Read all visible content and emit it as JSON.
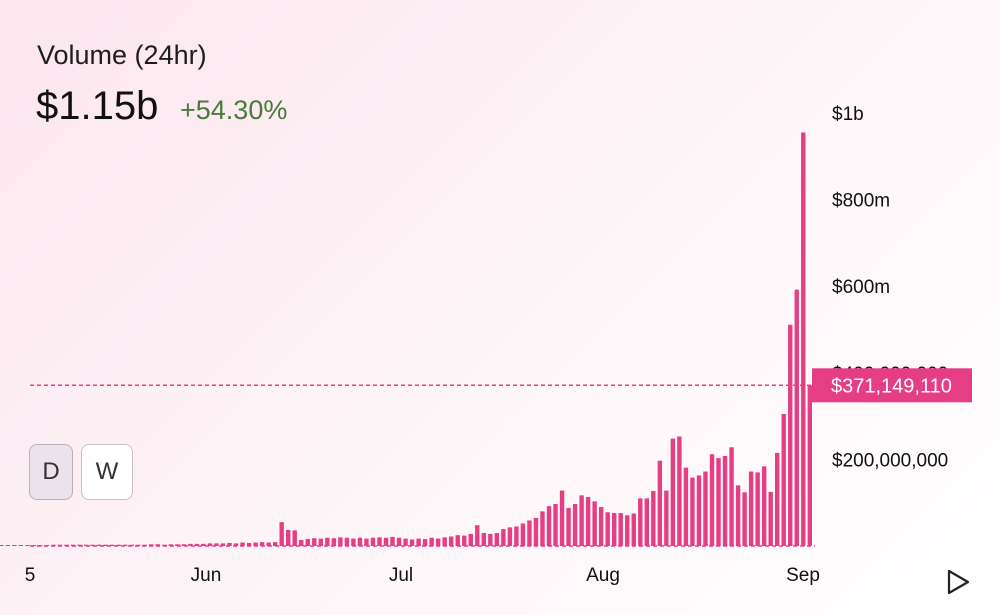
{
  "header": {
    "title": "Volume (24hr)",
    "value": "$1.15b",
    "change": "+54.30%"
  },
  "controls": {
    "daily_label": "D",
    "weekly_label": "W",
    "active": "D"
  },
  "crosshair": {
    "value": 371149110,
    "label": "$371,149,110"
  },
  "colors": {
    "bar": "#e63e84",
    "crosshair": "#e63e84",
    "change_positive": "#4b7a3b"
  },
  "chart_data": {
    "type": "bar",
    "y_tick_labels": [
      "$200,000,000",
      "$400,000,000",
      "$600m",
      "$800m",
      "$1b"
    ],
    "y_ticks": [
      200000000,
      400000000,
      600000000,
      800000000,
      1000000000
    ],
    "ylim": [
      0,
      1000000000
    ],
    "x_tick_labels": [
      "5",
      "Jun",
      "Jul",
      "Aug",
      "Sep"
    ],
    "bar_width_note": "daily bars",
    "values": [
      2000000,
      2000000,
      2000000,
      2000000,
      2000000,
      2000000,
      2000000,
      2000000,
      2000000,
      2000000,
      3000000,
      3000000,
      3000000,
      3000000,
      3000000,
      3000000,
      3000000,
      3000000,
      3000000,
      3000000,
      3000000,
      3000000,
      3000000,
      3000000,
      3000000,
      4000000,
      4000000,
      3000000,
      4000000,
      4000000,
      4000000,
      5000000,
      5000000,
      5000000,
      6000000,
      6000000,
      6000000,
      7000000,
      6000000,
      8000000,
      7000000,
      8000000,
      9000000,
      8000000,
      9000000,
      55000000,
      37000000,
      36000000,
      14000000,
      16000000,
      18000000,
      17000000,
      19000000,
      18000000,
      20000000,
      19000000,
      17000000,
      19000000,
      17000000,
      19000000,
      20000000,
      19000000,
      21000000,
      19000000,
      17000000,
      15000000,
      17000000,
      16000000,
      19000000,
      17000000,
      20000000,
      22000000,
      25000000,
      24000000,
      28000000,
      48000000,
      30000000,
      28000000,
      30000000,
      39000000,
      43000000,
      45000000,
      52000000,
      59000000,
      65000000,
      80000000,
      92000000,
      97000000,
      128000000,
      88000000,
      97000000,
      117000000,
      113000000,
      103000000,
      90000000,
      78000000,
      76000000,
      76000000,
      71000000,
      75000000,
      110000000,
      110000000,
      127000000,
      197000000,
      128000000,
      248000000,
      253000000,
      181000000,
      158000000,
      163000000,
      172000000,
      212000000,
      203000000,
      208000000,
      228000000,
      140000000,
      124000000,
      172000000,
      170000000,
      184000000,
      125000000,
      215000000,
      305000000,
      511000000,
      592000000,
      955000000,
      371000000
    ],
    "grid": false,
    "legend": "none"
  }
}
